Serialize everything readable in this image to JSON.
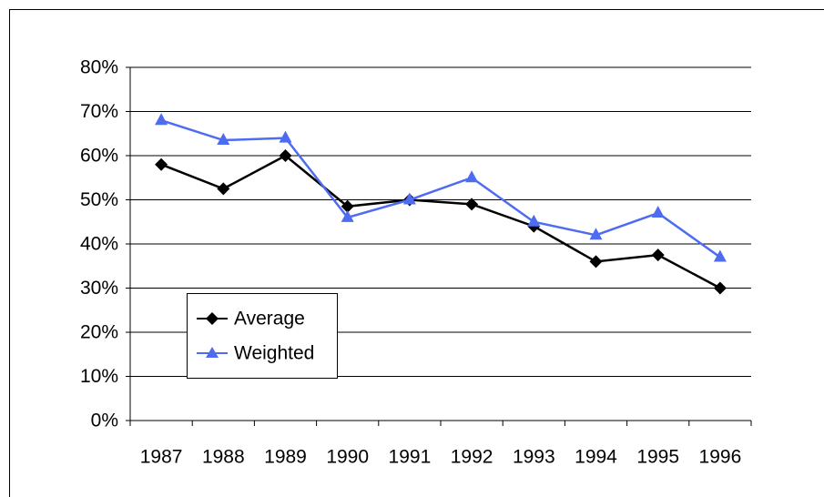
{
  "chart_data": {
    "type": "line",
    "categories": [
      "1987",
      "1988",
      "1989",
      "1990",
      "1991",
      "1992",
      "1993",
      "1994",
      "1995",
      "1996"
    ],
    "series": [
      {
        "name": "Average",
        "color": "#000000",
        "marker": "diamond",
        "values": [
          58,
          52.5,
          60,
          48.5,
          50,
          49,
          44,
          36,
          37.5,
          30
        ]
      },
      {
        "name": "Weighted",
        "color": "#4d6cf0",
        "marker": "triangle",
        "values": [
          68,
          63.5,
          64,
          46,
          50,
          55,
          45,
          42,
          47,
          37
        ]
      }
    ],
    "ylim": [
      0,
      80
    ],
    "yticks": [
      {
        "value": 0,
        "label": "0%"
      },
      {
        "value": 10,
        "label": "10%"
      },
      {
        "value": 20,
        "label": "20%"
      },
      {
        "value": 30,
        "label": "30%"
      },
      {
        "value": 40,
        "label": "40%"
      },
      {
        "value": 50,
        "label": "50%"
      },
      {
        "value": 60,
        "label": "60%"
      },
      {
        "value": 70,
        "label": "70%"
      },
      {
        "value": 80,
        "label": "80%"
      }
    ],
    "grid": true
  }
}
